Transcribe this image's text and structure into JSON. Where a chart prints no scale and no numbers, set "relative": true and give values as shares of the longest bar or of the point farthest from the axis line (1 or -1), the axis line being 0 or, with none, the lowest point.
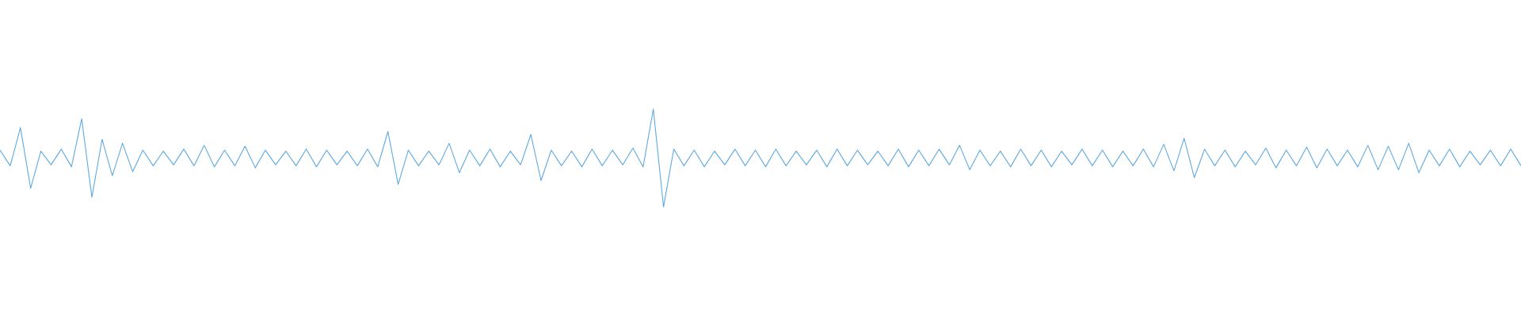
{
  "chart_data": {
    "type": "line",
    "relative": true,
    "categories": [
      null,
      null,
      null,
      null,
      null,
      null,
      null,
      null,
      null,
      null,
      null,
      null,
      null,
      null,
      null,
      null,
      null,
      null,
      null,
      null,
      null,
      null,
      null,
      null,
      null,
      null,
      null,
      null,
      null,
      null,
      null,
      null,
      null,
      null,
      null,
      null,
      null,
      null,
      null,
      null,
      null,
      null,
      null,
      null,
      null,
      null,
      null,
      null,
      null,
      null,
      null,
      null,
      null,
      null,
      null,
      null,
      null,
      null,
      null,
      null,
      null,
      null,
      null,
      null,
      null,
      null,
      null,
      null,
      null,
      null,
      null,
      null,
      null,
      null,
      null,
      null,
      null,
      null,
      null,
      null,
      null,
      null,
      null,
      null,
      null,
      null,
      null,
      null,
      null,
      null,
      null,
      null,
      null,
      null,
      null,
      null,
      null,
      null,
      null,
      null,
      null,
      null,
      null,
      null,
      null,
      null,
      null,
      null,
      null,
      null,
      null,
      null,
      null,
      null,
      null,
      null,
      null,
      null,
      null,
      null,
      null,
      null,
      null,
      null,
      null,
      null,
      null,
      null,
      null,
      null,
      null,
      null,
      null,
      null,
      null,
      null,
      null,
      null,
      null,
      null,
      null,
      null,
      null,
      null,
      null,
      null,
      null,
      null,
      null,
      null
    ],
    "series": [
      {
        "color": "#5da9e1",
        "values": [
          0.58,
          0.42,
          0.81,
          0.19,
          0.57,
          0.43,
          0.59,
          0.41,
          0.9,
          0.1,
          0.69,
          0.32,
          0.65,
          0.36,
          0.58,
          0.42,
          0.57,
          0.43,
          0.59,
          0.42,
          0.63,
          0.41,
          0.58,
          0.42,
          0.62,
          0.4,
          0.58,
          0.43,
          0.57,
          0.42,
          0.59,
          0.41,
          0.58,
          0.43,
          0.57,
          0.42,
          0.59,
          0.41,
          0.77,
          0.23,
          0.58,
          0.42,
          0.57,
          0.43,
          0.65,
          0.35,
          0.58,
          0.42,
          0.59,
          0.41,
          0.57,
          0.43,
          0.74,
          0.27,
          0.58,
          0.42,
          0.57,
          0.41,
          0.59,
          0.42,
          0.58,
          0.43,
          0.6,
          0.41,
          1.0,
          0.0,
          0.59,
          0.42,
          0.58,
          0.41,
          0.57,
          0.43,
          0.59,
          0.42,
          0.58,
          0.41,
          0.59,
          0.42,
          0.57,
          0.43,
          0.58,
          0.41,
          0.59,
          0.42,
          0.58,
          0.43,
          0.57,
          0.42,
          0.59,
          0.41,
          0.58,
          0.42,
          0.59,
          0.43,
          0.63,
          0.38,
          0.58,
          0.42,
          0.57,
          0.41,
          0.59,
          0.42,
          0.58,
          0.41,
          0.57,
          0.43,
          0.59,
          0.42,
          0.58,
          0.41,
          0.57,
          0.42,
          0.59,
          0.41,
          0.64,
          0.37,
          0.7,
          0.3,
          0.59,
          0.42,
          0.58,
          0.41,
          0.57,
          0.43,
          0.6,
          0.4,
          0.58,
          0.42,
          0.61,
          0.4,
          0.59,
          0.42,
          0.58,
          0.41,
          0.63,
          0.38,
          0.62,
          0.38,
          0.65,
          0.35,
          0.58,
          0.42,
          0.59,
          0.41,
          0.57,
          0.43,
          0.58,
          0.42,
          0.59,
          0.42
        ]
      }
    ]
  }
}
